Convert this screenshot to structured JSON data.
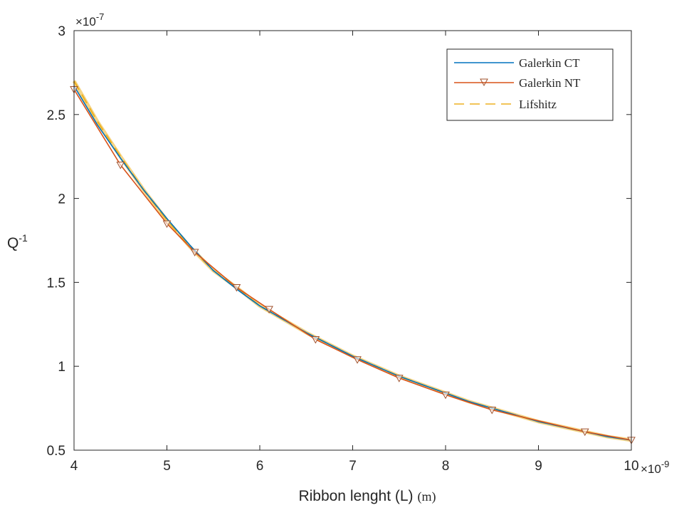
{
  "chart_data": {
    "type": "line",
    "xlabel": "Ribbon lenght (L)",
    "xlabel_unit": "(m)",
    "ylabel": "Q",
    "ylabel_sup": "-1",
    "xlim": [
      4,
      10
    ],
    "ylim": [
      0.5,
      3
    ],
    "x_exponent": {
      "base": "×10",
      "power": "-9"
    },
    "y_exponent": {
      "base": "×10",
      "power": "-7"
    },
    "xticks": [
      4,
      5,
      6,
      7,
      8,
      9,
      10
    ],
    "yticks": [
      0.5,
      1,
      1.5,
      2,
      2.5,
      3
    ],
    "grid": false,
    "legend_position": "top-right",
    "colors": {
      "ct": "#0072BD",
      "nt": "#D95319",
      "lif": "#EDB120"
    },
    "series": [
      {
        "name": "Galerkin CT",
        "style": "solid",
        "x": [
          4.0,
          4.25,
          4.5,
          4.75,
          5.0,
          5.25,
          5.5,
          5.75,
          6.0,
          6.25,
          6.5,
          6.75,
          7.0,
          7.25,
          7.5,
          7.75,
          8.0,
          8.25,
          8.5,
          8.75,
          9.0,
          9.25,
          9.5,
          9.75,
          10.0
        ],
        "values": [
          2.67,
          2.44,
          2.24,
          2.05,
          1.88,
          1.72,
          1.57,
          1.46,
          1.36,
          1.28,
          1.2,
          1.13,
          1.06,
          1.0,
          0.94,
          0.89,
          0.84,
          0.79,
          0.75,
          0.71,
          0.67,
          0.64,
          0.61,
          0.58,
          0.56
        ]
      },
      {
        "name": "Galerkin NT",
        "style": "solid-triangle",
        "x": [
          4.0,
          4.5,
          5.0,
          5.3,
          5.75,
          6.1,
          6.6,
          7.05,
          7.5,
          8.0,
          8.5,
          9.5,
          10.0
        ],
        "values": [
          2.65,
          2.2,
          1.85,
          1.68,
          1.47,
          1.34,
          1.16,
          1.04,
          0.93,
          0.83,
          0.74,
          0.61,
          0.56
        ]
      },
      {
        "name": "Lifshitz",
        "style": "dashed",
        "x": [
          4.0,
          4.25,
          4.5,
          4.75,
          5.0,
          5.25,
          5.5,
          5.75,
          6.0,
          6.25,
          6.5,
          6.75,
          7.0,
          7.25,
          7.5,
          7.75,
          8.0,
          8.25,
          8.5,
          8.75,
          9.0,
          9.25,
          9.5,
          9.75,
          10.0
        ],
        "values": [
          2.7,
          2.46,
          2.25,
          2.05,
          1.87,
          1.71,
          1.57,
          1.47,
          1.36,
          1.28,
          1.2,
          1.13,
          1.06,
          1.0,
          0.94,
          0.89,
          0.84,
          0.79,
          0.75,
          0.71,
          0.67,
          0.64,
          0.61,
          0.58,
          0.56
        ]
      }
    ]
  }
}
